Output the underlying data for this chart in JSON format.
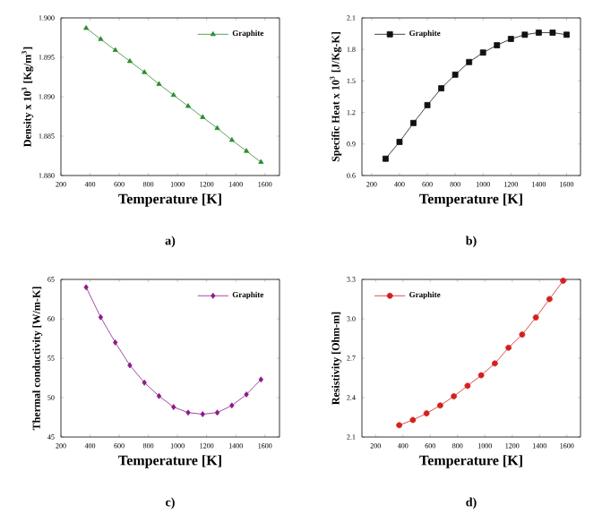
{
  "chart_data": [
    {
      "type": "line",
      "xlabel": "Temperature [K]",
      "ylabel": "Density x 10$^{3}$ [Kg/m$^{3}$]",
      "annotations": [
        "a)"
      ],
      "x": [
        373,
        473,
        573,
        673,
        773,
        873,
        973,
        1073,
        1173,
        1273,
        1373,
        1473,
        1573
      ],
      "series": [
        {
          "name": "Graphite",
          "color": "#2e8b2e",
          "values": [
            1.8987,
            1.8973,
            1.8959,
            1.8945,
            1.8931,
            1.8916,
            1.8902,
            1.8888,
            1.8874,
            1.886,
            1.8845,
            1.8831,
            1.8817
          ]
        }
      ],
      "xlim": [
        200,
        1700
      ],
      "xticks": [
        200,
        400,
        600,
        800,
        1000,
        1200,
        1400,
        1600
      ],
      "ylim": [
        1.88,
        1.9
      ],
      "yticks": [
        {
          "value": 1.88,
          "label": "1.880"
        },
        {
          "value": 1.885,
          "label": "1.885"
        },
        {
          "value": 1.89,
          "label": "1.890"
        },
        {
          "value": 1.895,
          "label": "1.895"
        },
        {
          "value": 1.9,
          "label": "1.900"
        }
      ],
      "legend": "top right",
      "marker": "triangle",
      "line_style": "solid"
    },
    {
      "type": "line",
      "xlabel": "Temperature [K]",
      "ylabel": "Specific Heat x 10$^{3}$ [J/Kg-K]",
      "annotations": [
        "b)"
      ],
      "x": [
        300,
        400,
        500,
        600,
        700,
        800,
        900,
        1000,
        1100,
        1200,
        1300,
        1400,
        1500,
        1600
      ],
      "series": [
        {
          "name": "Graphite",
          "color": "#111111",
          "values": [
            0.76,
            0.92,
            1.1,
            1.27,
            1.43,
            1.56,
            1.68,
            1.77,
            1.84,
            1.9,
            1.94,
            1.96,
            1.96,
            1.94
          ]
        }
      ],
      "xlim": [
        130,
        1700
      ],
      "xticks": [
        200,
        400,
        600,
        800,
        1000,
        1200,
        1400,
        1600
      ],
      "ylim": [
        0.6,
        2.1
      ],
      "yticks": [
        0.6,
        0.9,
        1.2,
        1.5,
        1.8,
        2.1
      ],
      "legend": "top left",
      "marker": "square",
      "line_style": "solid"
    },
    {
      "type": "line",
      "xlabel": "Temperature [K]",
      "ylabel": "Thermal conductivity [W/m-K]",
      "annotations": [
        "c)"
      ],
      "x": [
        373,
        473,
        573,
        673,
        773,
        873,
        973,
        1073,
        1173,
        1273,
        1373,
        1473,
        1573
      ],
      "series": [
        {
          "name": "Graphite",
          "color": "#8b1a8b",
          "values": [
            64.0,
            60.2,
            57.0,
            54.1,
            51.9,
            50.2,
            48.8,
            48.1,
            47.9,
            48.1,
            49.0,
            50.4,
            52.3
          ]
        }
      ],
      "xlim": [
        200,
        1700
      ],
      "xticks": [
        200,
        400,
        600,
        800,
        1000,
        1200,
        1400,
        1600
      ],
      "ylim": [
        45,
        65
      ],
      "yticks": [
        45,
        50,
        55,
        60,
        65
      ],
      "legend": "top right",
      "marker": "diamond",
      "line_style": "solid"
    },
    {
      "type": "line",
      "xlabel": "Temperature [K]",
      "ylabel": "Resistivity [Ohm-m]",
      "annotations": [
        "d)"
      ],
      "x": [
        373,
        473,
        573,
        673,
        773,
        873,
        973,
        1073,
        1173,
        1273,
        1373,
        1473,
        1573
      ],
      "series": [
        {
          "name": "Graphite",
          "color": "#d42020",
          "values": [
            2.19,
            2.23,
            2.28,
            2.34,
            2.41,
            2.49,
            2.57,
            2.66,
            2.78,
            2.88,
            3.01,
            3.15,
            3.29
          ]
        }
      ],
      "xlim": [
        100,
        1700
      ],
      "xticks": [
        200,
        400,
        600,
        800,
        1000,
        1200,
        1400,
        1600
      ],
      "ylim": [
        2.1,
        3.3
      ],
      "yticks": [
        2.1,
        2.4,
        2.7,
        {
          "value": 3.0,
          "label": "3.0"
        },
        3.3
      ],
      "legend": "top left",
      "marker": "circle",
      "line_style": "solid"
    }
  ]
}
